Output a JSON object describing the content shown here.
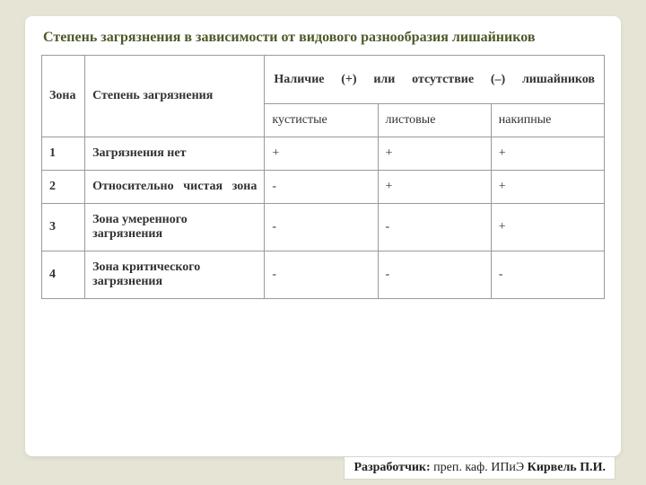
{
  "title": "Степень загрязнения в зависимости от видового разнообразия лишайников",
  "table": {
    "head": {
      "zone": "Зона",
      "degree": "Степень загрязнения",
      "group": "Наличие (+) или отсутствие (–) лишайников",
      "sub1": "кустистые",
      "sub2": "листовые",
      "sub3": "накипные"
    },
    "rows": [
      {
        "zone": "1",
        "degree": "Загрязнения нет",
        "v1": "+",
        "v2": "+",
        "v3": "+",
        "justify": false
      },
      {
        "zone": "2",
        "degree": "Относительно чистая зона",
        "v1": "-",
        "v2": "+",
        "v3": "+",
        "justify": true
      },
      {
        "zone": "3",
        "degree": "Зона умеренного загрязнения",
        "v1": "-",
        "v2": "-",
        "v3": "+",
        "justify": false
      },
      {
        "zone": "4",
        "degree": "Зона критического  загрязнения",
        "v1": "-",
        "v2": "-",
        "v3": "-",
        "justify": false
      }
    ]
  },
  "footer": {
    "label": "Разработчик:",
    "role": "преп. каф. ИПиЭ ",
    "name": " Кирвель П.И."
  },
  "colors": {
    "page_bg": "#e6e5d5",
    "card_bg": "#ffffff",
    "title_color": "#4c5a29",
    "border_color": "#9a9a9a",
    "text_color": "#323232"
  }
}
